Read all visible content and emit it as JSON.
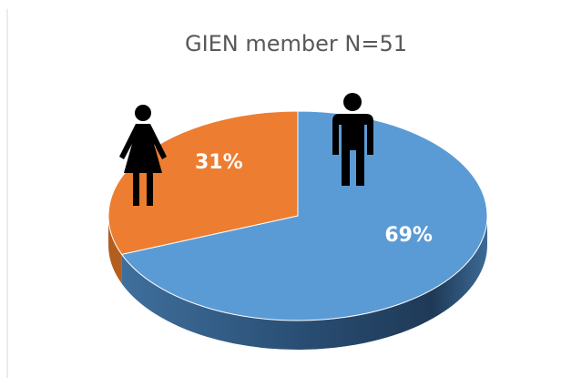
{
  "chart_data": {
    "type": "pie",
    "title": "GIEN member N=51",
    "values": [
      69,
      31
    ],
    "value_labels": [
      "69%",
      "31%"
    ],
    "colors": [
      "#5b9bd5",
      "#ed7d31"
    ]
  }
}
